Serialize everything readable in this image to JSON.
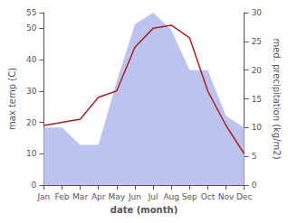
{
  "chart_data": {
    "type": "line",
    "categories": [
      "Jan",
      "Feb",
      "Mar",
      "Apr",
      "May",
      "Jun",
      "Jul",
      "Aug",
      "Sep",
      "Oct",
      "Nov",
      "Dec"
    ],
    "xlabel": "date (month)",
    "ylabel": "max temp (C)",
    "y2label": "med. precipitation (kg/m2)",
    "ylim": [
      0,
      55
    ],
    "yticks": [
      0,
      10,
      20,
      30,
      40,
      50
    ],
    "y2lim": [
      0,
      30
    ],
    "y2ticks": [
      0,
      5,
      10,
      15,
      20,
      25,
      30
    ],
    "grid": false,
    "series": [
      {
        "type": "area",
        "axis": "y2",
        "color": "#bcc3ee",
        "values": [
          10,
          10,
          7,
          7,
          18,
          28,
          30,
          27,
          20,
          20,
          12,
          10
        ]
      },
      {
        "type": "line",
        "color": "#aa2222",
        "values": [
          19,
          20,
          21,
          28,
          30,
          44,
          50,
          51,
          47,
          30,
          19,
          10
        ]
      }
    ]
  }
}
